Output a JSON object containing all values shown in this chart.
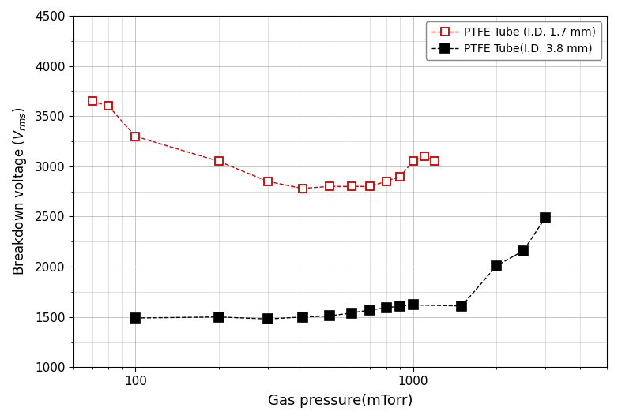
{
  "series1_label": "PTFE Tube (I.D. 1.7 mm)",
  "series2_label": "PTFE Tube(I.D. 3.8 mm)",
  "series1_color": "#cc0000",
  "series2_color": "#000000",
  "series1_x": [
    70,
    80,
    100,
    200,
    300,
    400,
    500,
    600,
    700,
    800,
    900,
    1000,
    1100,
    1200
  ],
  "series1_y": [
    3650,
    3600,
    3300,
    3050,
    2850,
    2780,
    2800,
    2800,
    2800,
    2850,
    2900,
    3050,
    3100,
    3050
  ],
  "series2_x": [
    100,
    200,
    300,
    400,
    500,
    600,
    700,
    800,
    900,
    1000,
    1500,
    2000,
    2500,
    3000
  ],
  "series2_y": [
    1490,
    1500,
    1480,
    1500,
    1510,
    1540,
    1570,
    1590,
    1610,
    1620,
    1610,
    2010,
    2160,
    2490
  ],
  "xlabel": "Gas pressure(mTorr)",
  "xlim_log": [
    1.778,
    3.699
  ],
  "ylim": [
    1000,
    4500
  ],
  "yticks": [
    1000,
    1500,
    2000,
    2500,
    3000,
    3500,
    4000,
    4500
  ],
  "background_color": "#ffffff",
  "grid_color": "#bbbbbb"
}
